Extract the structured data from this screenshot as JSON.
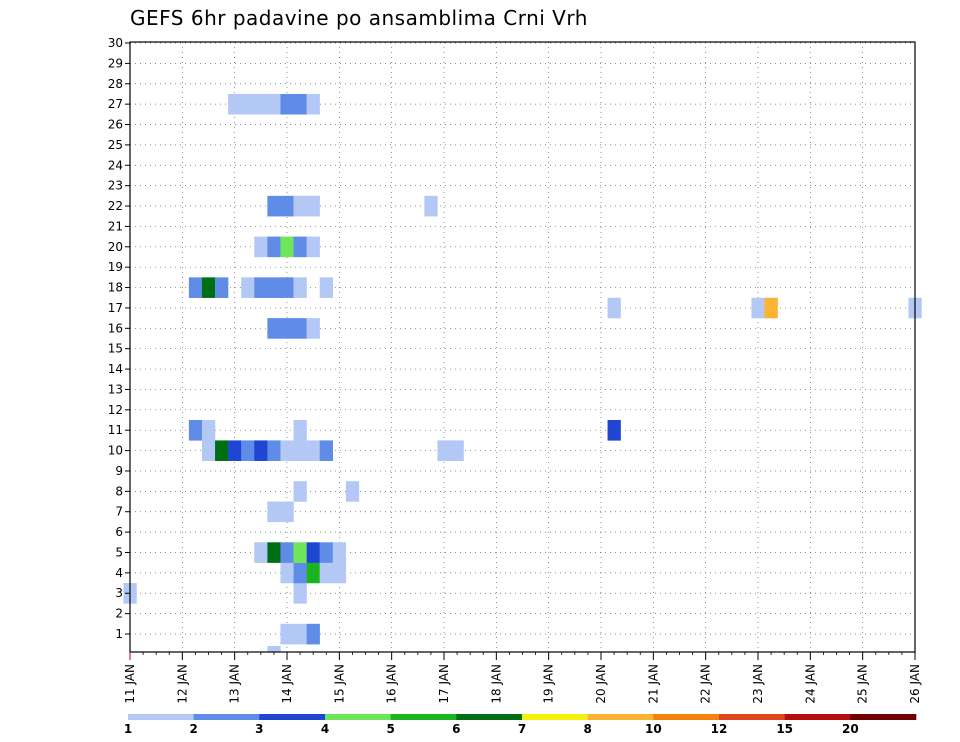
{
  "chart_data": {
    "type": "heatmap",
    "title": "GEFS 6hr padavine po ansamblima Crni Vrh",
    "xlabel": "",
    "ylabel": "",
    "x_axis": {
      "start_day": 11,
      "end_day": 26,
      "step_hours": 6,
      "tick_labels": [
        "11 JAN",
        "12 JAN",
        "13 JAN",
        "14 JAN",
        "15 JAN",
        "16 JAN",
        "17 JAN",
        "18 JAN",
        "19 JAN",
        "20 JAN",
        "21 JAN",
        "22 JAN",
        "23 JAN",
        "24 JAN",
        "25 JAN",
        "26 JAN"
      ]
    },
    "y_axis": {
      "members": [
        1,
        30
      ],
      "tick_labels": [
        "1",
        "2",
        "3",
        "4",
        "5",
        "6",
        "7",
        "8",
        "9",
        "10",
        "11",
        "12",
        "13",
        "14",
        "15",
        "16",
        "17",
        "18",
        "19",
        "20",
        "21",
        "22",
        "23",
        "24",
        "25",
        "26",
        "27",
        "28",
        "29",
        "30"
      ]
    },
    "grid": true,
    "color_scale": {
      "labels": [
        "1",
        "2",
        "3",
        "4",
        "5",
        "6",
        "7",
        "8",
        "10",
        "12",
        "15",
        "20"
      ],
      "colors": [
        "#b4c8f5",
        "#5f8ce6",
        "#1e46d2",
        "#6ee65a",
        "#19b41e",
        "#006e14",
        "#f5f00a",
        "#fab432",
        "#f5820a",
        "#e1461e",
        "#b40f0f",
        "#6e0000"
      ]
    },
    "cells": [
      {
        "m": 0,
        "d": "13.75",
        "v": 1
      },
      {
        "m": 1,
        "d": "14.0",
        "v": 1
      },
      {
        "m": 1,
        "d": "14.25",
        "v": 1
      },
      {
        "m": 1,
        "d": "14.5",
        "v": 2
      },
      {
        "m": 3,
        "d": "14.25",
        "v": 1
      },
      {
        "m": 3,
        "d": "11.0",
        "v": 1
      },
      {
        "m": 4,
        "d": "14.0",
        "v": 1
      },
      {
        "m": 4,
        "d": "14.25",
        "v": 2
      },
      {
        "m": 4,
        "d": "14.5",
        "v": 5
      },
      {
        "m": 4,
        "d": "14.75",
        "v": 1
      },
      {
        "m": 4,
        "d": "15.0",
        "v": 1
      },
      {
        "m": 5,
        "d": "13.5",
        "v": 1
      },
      {
        "m": 5,
        "d": "13.75",
        "v": 6
      },
      {
        "m": 5,
        "d": "14.0",
        "v": 2
      },
      {
        "m": 5,
        "d": "14.25",
        "v": 4
      },
      {
        "m": 5,
        "d": "14.5",
        "v": 3
      },
      {
        "m": 5,
        "d": "14.75",
        "v": 2
      },
      {
        "m": 5,
        "d": "15.0",
        "v": 1
      },
      {
        "m": 7,
        "d": "13.75",
        "v": 1
      },
      {
        "m": 7,
        "d": "14.0",
        "v": 1
      },
      {
        "m": 8,
        "d": "14.25",
        "v": 1
      },
      {
        "m": 8,
        "d": "15.25",
        "v": 1
      },
      {
        "m": 10,
        "d": "12.5",
        "v": 1
      },
      {
        "m": 10,
        "d": "12.75",
        "v": 6
      },
      {
        "m": 10,
        "d": "13.0",
        "v": 3
      },
      {
        "m": 10,
        "d": "13.25",
        "v": 2
      },
      {
        "m": 10,
        "d": "13.5",
        "v": 3
      },
      {
        "m": 10,
        "d": "13.75",
        "v": 2
      },
      {
        "m": 10,
        "d": "14.0",
        "v": 1
      },
      {
        "m": 10,
        "d": "14.25",
        "v": 1
      },
      {
        "m": 10,
        "d": "14.5",
        "v": 1
      },
      {
        "m": 10,
        "d": "14.75",
        "v": 2
      },
      {
        "m": 10,
        "d": "17.0",
        "v": 1
      },
      {
        "m": 10,
        "d": "17.25",
        "v": 1
      },
      {
        "m": 11,
        "d": "12.25",
        "v": 2
      },
      {
        "m": 11,
        "d": "12.5",
        "v": 1
      },
      {
        "m": 11,
        "d": "14.25",
        "v": 1
      },
      {
        "m": 11,
        "d": "20.25",
        "v": 3
      },
      {
        "m": 16,
        "d": "13.75",
        "v": 2
      },
      {
        "m": 16,
        "d": "14.0",
        "v": 2
      },
      {
        "m": 16,
        "d": "14.25",
        "v": 2
      },
      {
        "m": 16,
        "d": "14.5",
        "v": 1
      },
      {
        "m": 17,
        "d": "20.25",
        "v": 1
      },
      {
        "m": 17,
        "d": "23.0",
        "v": 1
      },
      {
        "m": 17,
        "d": "23.25",
        "v": 8
      },
      {
        "m": 17,
        "d": "26.0",
        "v": 1
      },
      {
        "m": 18,
        "d": "12.25",
        "v": 2
      },
      {
        "m": 18,
        "d": "12.5",
        "v": 6
      },
      {
        "m": 18,
        "d": "12.75",
        "v": 2
      },
      {
        "m": 18,
        "d": "13.25",
        "v": 1
      },
      {
        "m": 18,
        "d": "13.5",
        "v": 2
      },
      {
        "m": 18,
        "d": "13.75",
        "v": 2
      },
      {
        "m": 18,
        "d": "14.0",
        "v": 2
      },
      {
        "m": 18,
        "d": "14.25",
        "v": 1
      },
      {
        "m": 18,
        "d": "14.75",
        "v": 1
      },
      {
        "m": 20,
        "d": "13.5",
        "v": 1
      },
      {
        "m": 20,
        "d": "13.75",
        "v": 2
      },
      {
        "m": 20,
        "d": "14.0",
        "v": 4
      },
      {
        "m": 20,
        "d": "14.25",
        "v": 2
      },
      {
        "m": 20,
        "d": "14.5",
        "v": 1
      },
      {
        "m": 22,
        "d": "13.75",
        "v": 2
      },
      {
        "m": 22,
        "d": "14.0",
        "v": 2
      },
      {
        "m": 22,
        "d": "14.25",
        "v": 1
      },
      {
        "m": 22,
        "d": "14.5",
        "v": 1
      },
      {
        "m": 22,
        "d": "16.75",
        "v": 1
      },
      {
        "m": 27,
        "d": "13.0",
        "v": 1
      },
      {
        "m": 27,
        "d": "13.25",
        "v": 1
      },
      {
        "m": 27,
        "d": "13.5",
        "v": 1
      },
      {
        "m": 27,
        "d": "13.75",
        "v": 1
      },
      {
        "m": 27,
        "d": "14.0",
        "v": 2
      },
      {
        "m": 27,
        "d": "14.25",
        "v": 2
      },
      {
        "m": 27,
        "d": "14.5",
        "v": 1
      }
    ]
  }
}
